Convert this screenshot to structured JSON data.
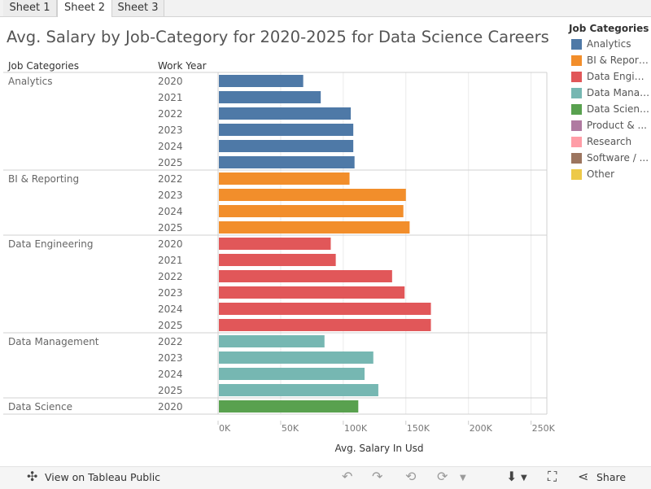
{
  "tabs": [
    {
      "label": "Sheet 1"
    },
    {
      "label": "Sheet 2",
      "active": true
    },
    {
      "label": "Sheet 3"
    }
  ],
  "title": "Avg. Salary by Job-Category for 2020-2025 for Data Science Careers",
  "legend": {
    "title": "Job Categories",
    "items": [
      {
        "label": "Analytics",
        "color": "#4e79a7"
      },
      {
        "label": "BI & Reporting",
        "color": "#f28e2b"
      },
      {
        "label": "Data Engineering",
        "color": "#e15759"
      },
      {
        "label": "Data Management",
        "color": "#76b7b2"
      },
      {
        "label": "Data Science",
        "color": "#59a14f"
      },
      {
        "label": "Product & ...",
        "color": "#b07aa1"
      },
      {
        "label": "Research",
        "color": "#ff9da7"
      },
      {
        "label": "Software / ...",
        "color": "#9c755f"
      },
      {
        "label": "Other",
        "color": "#edc948"
      }
    ]
  },
  "chart_data": {
    "type": "bar",
    "orientation": "horizontal",
    "title": "Avg. Salary by Job-Category for 2020-2025 for Data Science Careers",
    "row_headers": [
      "Job Categories",
      "Work Year"
    ],
    "xlabel": "Avg. Salary In Usd",
    "xlim": [
      0,
      260000
    ],
    "xticks": [
      0,
      50000,
      100000,
      150000,
      200000,
      250000
    ],
    "xtick_labels": [
      "0K",
      "50K",
      "100K",
      "150K",
      "200K",
      "250K"
    ],
    "grid": true,
    "legend_position": "right",
    "groups": [
      {
        "category": "Analytics",
        "color": "#4e79a7",
        "rows": [
          {
            "year": "2020",
            "value": 68000
          },
          {
            "year": "2021",
            "value": 82000
          },
          {
            "year": "2022",
            "value": 106000
          },
          {
            "year": "2023",
            "value": 108000
          },
          {
            "year": "2024",
            "value": 108000
          },
          {
            "year": "2025",
            "value": 109000
          }
        ]
      },
      {
        "category": "BI & Reporting",
        "color": "#f28e2b",
        "rows": [
          {
            "year": "2022",
            "value": 105000
          },
          {
            "year": "2023",
            "value": 150000
          },
          {
            "year": "2024",
            "value": 148000
          },
          {
            "year": "2025",
            "value": 153000
          }
        ]
      },
      {
        "category": "Data Engineering",
        "color": "#e15759",
        "rows": [
          {
            "year": "2020",
            "value": 90000
          },
          {
            "year": "2021",
            "value": 94000
          },
          {
            "year": "2022",
            "value": 139000
          },
          {
            "year": "2023",
            "value": 149000
          },
          {
            "year": "2024",
            "value": 170000
          },
          {
            "year": "2025",
            "value": 170000
          }
        ]
      },
      {
        "category": "Data Management",
        "color": "#76b7b2",
        "rows": [
          {
            "year": "2022",
            "value": 85000
          },
          {
            "year": "2023",
            "value": 124000
          },
          {
            "year": "2024",
            "value": 117000
          },
          {
            "year": "2025",
            "value": 128000
          }
        ]
      },
      {
        "category": "Data Science",
        "color": "#59a14f",
        "rows": [
          {
            "year": "2020",
            "value": 112000
          }
        ]
      }
    ]
  },
  "footer": {
    "view_label": "View on Tableau Public",
    "share_label": "Share",
    "icons": [
      "tableau-logo-icon",
      "undo-icon",
      "redo-icon",
      "revert-icon",
      "refresh-icon",
      "download-icon",
      "fullscreen-icon",
      "share-icon"
    ]
  }
}
